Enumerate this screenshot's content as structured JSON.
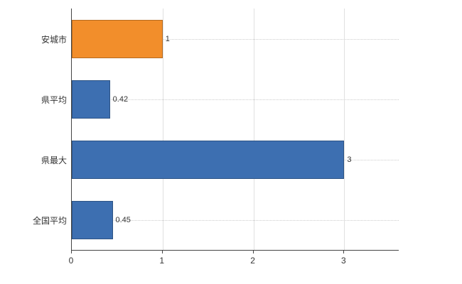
{
  "chart_data": {
    "type": "bar",
    "orientation": "horizontal",
    "title": "",
    "xlabel": "",
    "ylabel": "",
    "categories": [
      "安城市",
      "県平均",
      "県最大",
      "全国平均"
    ],
    "values": [
      1,
      0.42,
      3,
      0.45
    ],
    "value_labels": [
      "1",
      "0.42",
      "3",
      "0.45"
    ],
    "bar_colors": [
      "#f28e2b",
      "#3d6fb1",
      "#3d6fb1",
      "#3d6fb1"
    ],
    "xlim": [
      0,
      3.6
    ],
    "x_ticks": [
      0,
      1,
      2,
      3
    ],
    "x_tick_labels": [
      "0",
      "1",
      "2",
      "3"
    ],
    "grid": true,
    "legend": false
  },
  "colors": {
    "orange": "#f28e2b",
    "blue": "#3d6fb1",
    "axis": "#444444",
    "gridline": "#e0e0e0",
    "dotted_gridline": "#cccccc",
    "background": "#ffffff"
  }
}
